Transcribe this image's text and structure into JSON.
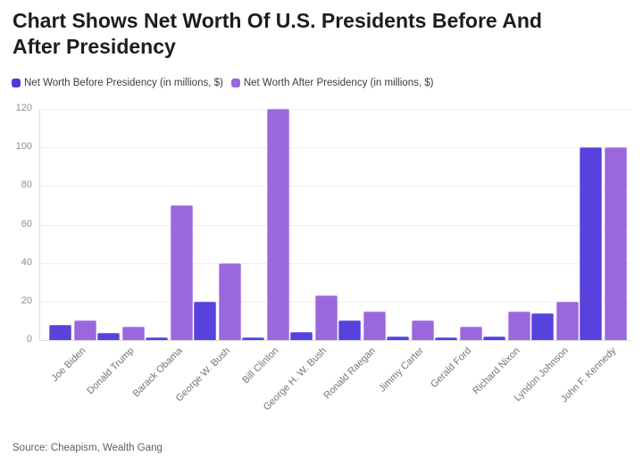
{
  "title": {
    "line1": "Chart Shows Net Worth Of U.S. Presidents Before And",
    "line2": "After Presidency"
  },
  "legend": [
    {
      "label": "Net Worth Before Presidency (in millions, $)",
      "color": "#5038d8"
    },
    {
      "label": "Net Worth After Presidency (in millions, $)",
      "color": "#9b67df"
    }
  ],
  "source": "Source: Cheapism, Wealth Gang",
  "chart_data": {
    "type": "bar",
    "title": "Chart Shows Net Worth Of U.S. Presidents Before And After Presidency",
    "categories": [
      "Joe Biden",
      "Donald Trump",
      "Barack Obama",
      "George W. Bush",
      "Bill Clinton",
      "George H. W. Bush",
      "Ronald Raegan",
      "Jimmy Carter",
      "Gerald Ford",
      "Richard Nixon",
      "Lyndon Johnson",
      "John F. Kennedy"
    ],
    "series": [
      {
        "name": "Net Worth Before Presidency (in millions, $)",
        "color": "#5742de",
        "border_color": "#8374e9",
        "values": [
          8,
          3.5,
          1.3,
          20,
          1.3,
          4,
          10,
          2,
          1.3,
          2,
          14,
          100
        ]
      },
      {
        "name": "Net Worth After Presidency (in millions, $)",
        "color": "#9b67df",
        "border_color": "#b893ea",
        "values": [
          10,
          7,
          70,
          40,
          120,
          23,
          15,
          10,
          7,
          15,
          20,
          100
        ]
      }
    ],
    "xlabel": "",
    "ylabel": "",
    "ylim": [
      0,
      120
    ],
    "yticks": [
      0,
      20,
      40,
      60,
      80,
      100,
      120
    ],
    "grid": true,
    "legend_position": "top",
    "source": "Source: Cheapism, Wealth Gang"
  }
}
